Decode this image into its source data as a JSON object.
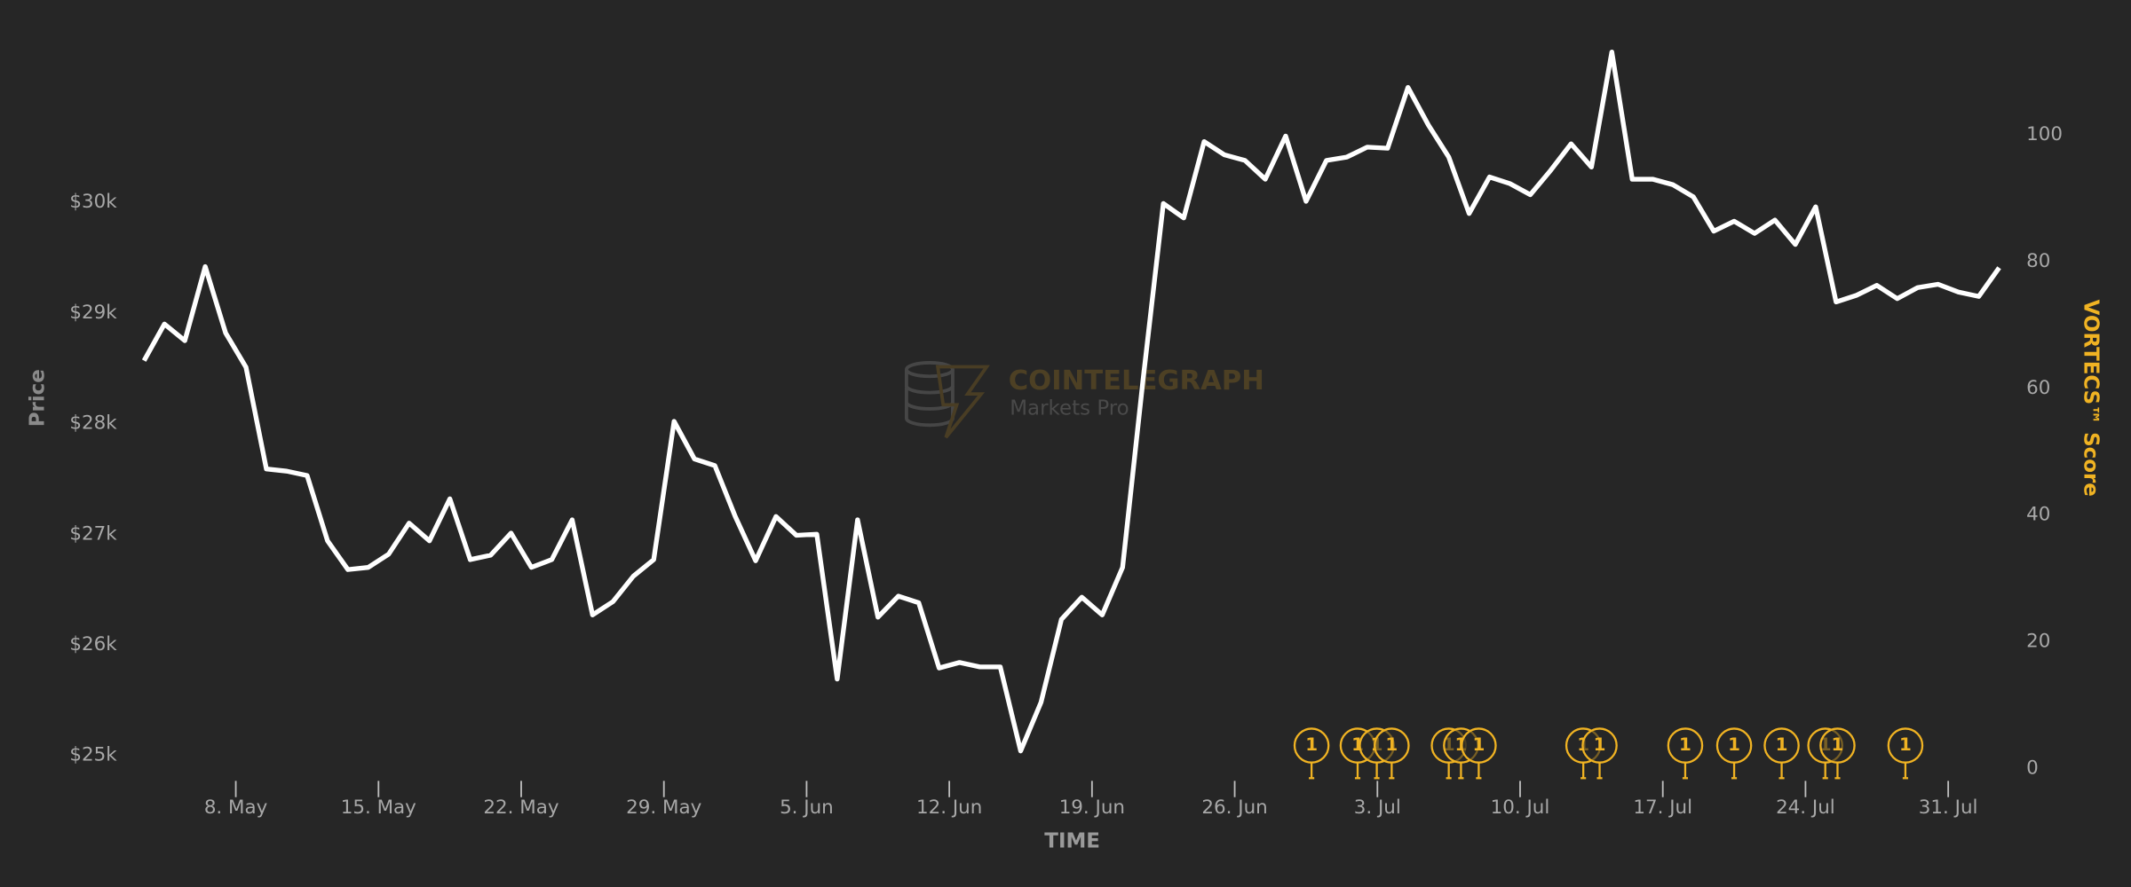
{
  "chart_data": {
    "type": "line",
    "watermark": {
      "title": "COINTELEGRAPH",
      "subtitle": "Markets Pro"
    },
    "ylabel": "Price",
    "xlabel": "TIME",
    "y2label": "VORTECS™ Score",
    "color": "#ffffff",
    "y2color": "#f0b323",
    "x": [
      123.5,
      124.5,
      125.5,
      126.5,
      127.5,
      128.5,
      129.5,
      130.5,
      131.5,
      132.5,
      133.5,
      134.5,
      135.5,
      136.5,
      137.5,
      138.5,
      139.5,
      140.5,
      141.5,
      142.5,
      143.5,
      144.5,
      145.5,
      146.5,
      147.5,
      148.5,
      149.5,
      150.5,
      151.5,
      152.5,
      153.5,
      154.5,
      155.5,
      156.5,
      157.5,
      158.5,
      159.5,
      160.5,
      161.5,
      162.5,
      163.5,
      164.5,
      165.5,
      166.5,
      167.5,
      168.5,
      169.5,
      170.5,
      171.5,
      172.5,
      173.5,
      174.5,
      175.5,
      176.5,
      177.5,
      178.5,
      179.5,
      180.5,
      181.5,
      182.5,
      183.5,
      184.5,
      185.5,
      186.5,
      187.5,
      188.5,
      189.5,
      190.5,
      191.5,
      192.5,
      193.5,
      194.5,
      195.5,
      196.5,
      197.5,
      198.5,
      199.5,
      200.5,
      201.5,
      202.5,
      203.5,
      204.5,
      205.5,
      206.5,
      207.5,
      208.5,
      209.5,
      210.5,
      211.5,
      212.5,
      213.5,
      214.5
    ],
    "values": [
      28570,
      28900,
      28750,
      29420,
      28820,
      28510,
      27590,
      27570,
      27530,
      26940,
      26680,
      26700,
      26820,
      27100,
      26940,
      27320,
      26770,
      26810,
      27010,
      26700,
      26770,
      27130,
      26270,
      26390,
      26620,
      26770,
      28020,
      27680,
      27620,
      27160,
      26760,
      27160,
      26990,
      27000,
      25690,
      27130,
      26250,
      26440,
      26380,
      25790,
      25840,
      25800,
      25800,
      25040,
      25480,
      26230,
      26430,
      26270,
      26700,
      28390,
      29990,
      29860,
      30550,
      30430,
      30380,
      30210,
      30600,
      30010,
      30380,
      30410,
      30500,
      30490,
      31040,
      30700,
      30410,
      29900,
      30230,
      30170,
      30070,
      30290,
      30530,
      30320,
      31360,
      30210,
      30210,
      30160,
      30050,
      29740,
      29830,
      29720,
      29840,
      29620,
      29960,
      29100,
      29160,
      29250,
      29130,
      29230,
      29260,
      29190,
      29150,
      29410
    ],
    "xlim": [
      123.5,
      214.5
    ],
    "xticks": [
      {
        "value": 128,
        "label": "8. May"
      },
      {
        "value": 135,
        "label": "15. May"
      },
      {
        "value": 142,
        "label": "22. May"
      },
      {
        "value": 149,
        "label": "29. May"
      },
      {
        "value": 156,
        "label": "5. Jun"
      },
      {
        "value": 163,
        "label": "12. Jun"
      },
      {
        "value": 170,
        "label": "19. Jun"
      },
      {
        "value": 177,
        "label": "26. Jun"
      },
      {
        "value": 184,
        "label": "3. Jul"
      },
      {
        "value": 191,
        "label": "10. Jul"
      },
      {
        "value": 198,
        "label": "17. Jul"
      },
      {
        "value": 205,
        "label": "24. Jul"
      },
      {
        "value": 212,
        "label": "31. Jul"
      }
    ],
    "ylim": [
      24880,
      31460
    ],
    "yticks": [
      {
        "value": 25000,
        "label": "$25k"
      },
      {
        "value": 26000,
        "label": "$26k"
      },
      {
        "value": 27000,
        "label": "$27k"
      },
      {
        "value": 28000,
        "label": "$28k"
      },
      {
        "value": 29000,
        "label": "$29k"
      },
      {
        "value": 30000,
        "label": "$30k"
      }
    ],
    "y2lim": [
      0,
      114.8
    ],
    "y2ticks": [
      0,
      20,
      40,
      60,
      80,
      100
    ],
    "events": {
      "x": [
        180.77,
        183.03,
        183.97,
        184.7,
        187.5,
        188.1,
        188.97,
        194.1,
        194.9,
        199.1,
        201.5,
        203.83,
        205.97,
        206.57,
        209.9
      ],
      "values": [
        1,
        1,
        1,
        1,
        1,
        1,
        1,
        1,
        1,
        1,
        1,
        1,
        1,
        1,
        1
      ]
    }
  }
}
